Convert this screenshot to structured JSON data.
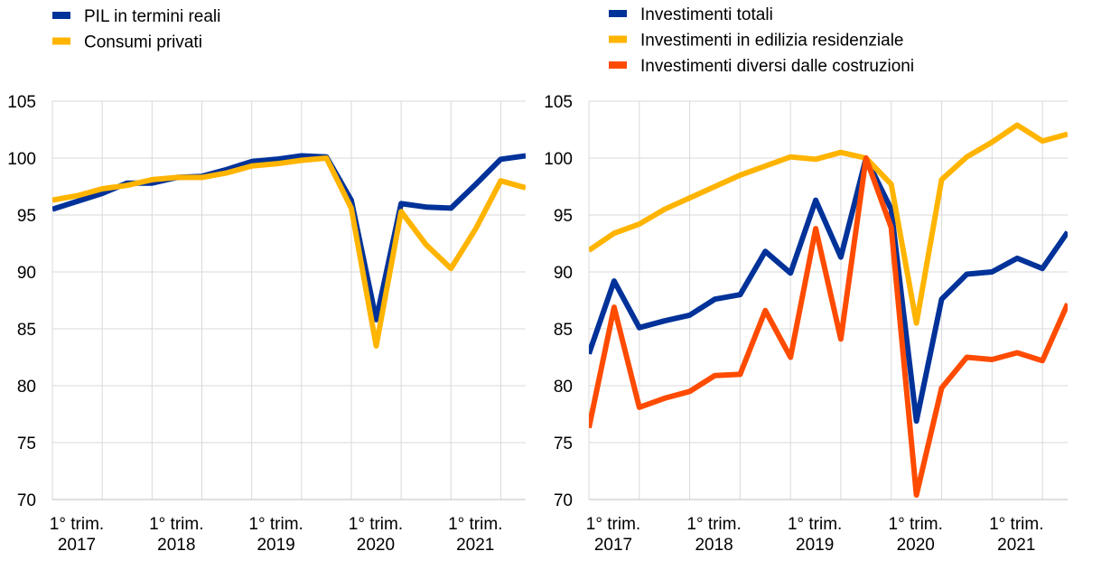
{
  "chart_data": [
    {
      "type": "line",
      "title": "",
      "xlabel": "",
      "ylabel": "",
      "ylim": [
        70,
        105
      ],
      "yticks": [
        70,
        75,
        80,
        85,
        90,
        95,
        100,
        105
      ],
      "grid": true,
      "legend": "top-left",
      "x_tick_labels": [
        [
          "1° trim.",
          "2017"
        ],
        [
          "1° trim.",
          "2018"
        ],
        [
          "1° trim.",
          "2019"
        ],
        [
          "1° trim.",
          "2020"
        ],
        [
          "1° trim.",
          "2021"
        ]
      ],
      "x": [
        "2017Q1",
        "2017Q2",
        "2017Q3",
        "2017Q4",
        "2018Q1",
        "2018Q2",
        "2018Q3",
        "2018Q4",
        "2019Q1",
        "2019Q2",
        "2019Q3",
        "2019Q4",
        "2020Q1",
        "2020Q2",
        "2020Q3",
        "2020Q4",
        "2021Q1",
        "2021Q2",
        "2021Q3",
        "2021Q4"
      ],
      "series": [
        {
          "name": "PIL in termini reali",
          "color": "#003299",
          "values": [
            95.5,
            96.2,
            96.9,
            97.8,
            97.8,
            98.3,
            98.4,
            99.0,
            99.7,
            99.9,
            100.2,
            100.1,
            96.3,
            85.8,
            96.0,
            95.7,
            95.6,
            97.7,
            99.9,
            100.2
          ]
        },
        {
          "name": "Consumi privati",
          "color": "#FFB400",
          "values": [
            96.3,
            96.7,
            97.3,
            97.6,
            98.1,
            98.3,
            98.3,
            98.7,
            99.3,
            99.5,
            99.8,
            100.0,
            95.6,
            83.5,
            95.3,
            92.4,
            90.3,
            93.8,
            98.0,
            97.4
          ]
        }
      ]
    },
    {
      "type": "line",
      "title": "",
      "xlabel": "",
      "ylabel": "",
      "ylim": [
        70,
        105
      ],
      "yticks": [
        70,
        75,
        80,
        85,
        90,
        95,
        100,
        105
      ],
      "grid": true,
      "legend": "top-left",
      "x_tick_labels": [
        [
          "1° trim.",
          "2017"
        ],
        [
          "1° trim.",
          "2018"
        ],
        [
          "1° trim.",
          "2019"
        ],
        [
          "1° trim.",
          "2020"
        ],
        [
          "1° trim.",
          "2021"
        ]
      ],
      "x": [
        "2017Q1",
        "2017Q2",
        "2017Q3",
        "2017Q4",
        "2018Q1",
        "2018Q2",
        "2018Q3",
        "2018Q4",
        "2019Q1",
        "2019Q2",
        "2019Q3",
        "2019Q4",
        "2020Q1",
        "2020Q2",
        "2020Q3",
        "2020Q4",
        "2021Q1",
        "2021Q2",
        "2021Q3",
        "2021Q4"
      ],
      "series": [
        {
          "name": "Investimenti totali",
          "color": "#003299",
          "values": [
            82.8,
            89.2,
            85.1,
            85.7,
            86.2,
            87.6,
            88.0,
            91.8,
            89.9,
            96.3,
            91.3,
            100.0,
            95.5,
            76.9,
            87.6,
            89.8,
            90.0,
            91.2,
            90.3,
            93.5
          ]
        },
        {
          "name": "Investimenti in edilizia residenziale",
          "color": "#FFB400",
          "values": [
            91.9,
            93.4,
            94.2,
            95.5,
            96.5,
            97.5,
            98.5,
            99.3,
            100.1,
            99.9,
            100.5,
            100.0,
            97.7,
            85.5,
            98.1,
            100.1,
            101.4,
            102.9,
            101.5,
            102.1
          ]
        },
        {
          "name": "Investimenti diversi dalle costruzioni",
          "color": "#FF4B00",
          "values": [
            76.3,
            86.9,
            78.1,
            78.9,
            79.5,
            80.9,
            81.0,
            86.6,
            82.5,
            93.8,
            84.1,
            100.0,
            93.9,
            70.4,
            79.8,
            82.5,
            82.3,
            82.9,
            82.2,
            87.2
          ]
        }
      ]
    }
  ]
}
